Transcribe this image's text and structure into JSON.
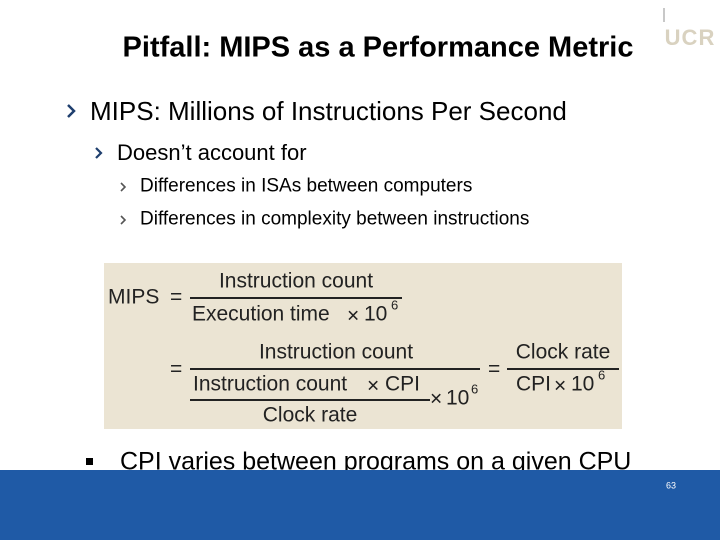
{
  "header": {
    "title": "Pitfall: MIPS as a Performance Metric",
    "logo": "UCR"
  },
  "bullets": [
    {
      "text": "MIPS: Millions of Instructions Per Second",
      "children": [
        {
          "text": "Doesn’t account for",
          "children": [
            {
              "text": "Differences in ISAs between computers"
            },
            {
              "text": "Differences in complexity between instructions"
            }
          ]
        }
      ]
    }
  ],
  "formula": {
    "lhs": "MIPS",
    "equals": "=",
    "times": "×",
    "instruction_count": "Instruction count",
    "execution_time": "Execution time",
    "ten": "10",
    "exponent": "6",
    "cpi": "CPI",
    "clock_rate": "Clock rate"
  },
  "last_bullet": "CPI varies between programs on a given CPU",
  "footer": {
    "page_number": "63"
  }
}
